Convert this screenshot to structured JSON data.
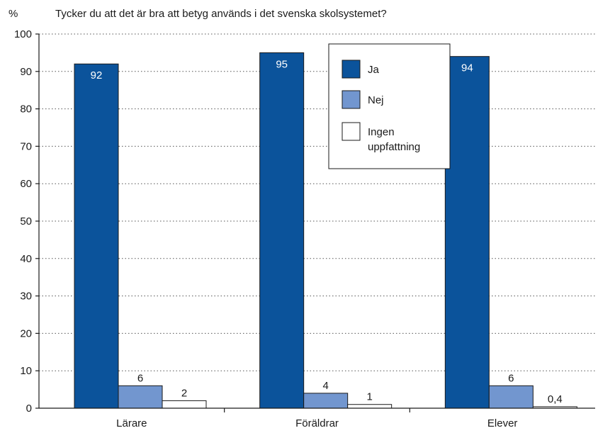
{
  "chart_data": {
    "type": "bar",
    "title": "Tycker du att det är bra att betyg används i det svenska skolsystemet?",
    "ylabel": "%",
    "xlabel": "",
    "ylim": [
      0,
      100
    ],
    "yticks": [
      "0",
      "10",
      "20",
      "30",
      "40",
      "50",
      "60",
      "70",
      "80",
      "90",
      "100"
    ],
    "grid": true,
    "legend_position": "top-right",
    "categories": [
      "Lärare",
      "Föräldrar",
      "Elever"
    ],
    "series": [
      {
        "name": "Ja",
        "color": "#0b539b",
        "values": [
          92,
          95,
          94
        ],
        "labels": [
          "92",
          "95",
          "94"
        ]
      },
      {
        "name": "Nej",
        "color": "#7296cf",
        "values": [
          6,
          4,
          6
        ],
        "labels": [
          "6",
          "4",
          "6"
        ]
      },
      {
        "name": "Ingen\nuppfattning",
        "color": "#ffffff",
        "values": [
          2,
          1,
          0.4
        ],
        "labels": [
          "2",
          "1",
          "0,4"
        ]
      }
    ]
  }
}
